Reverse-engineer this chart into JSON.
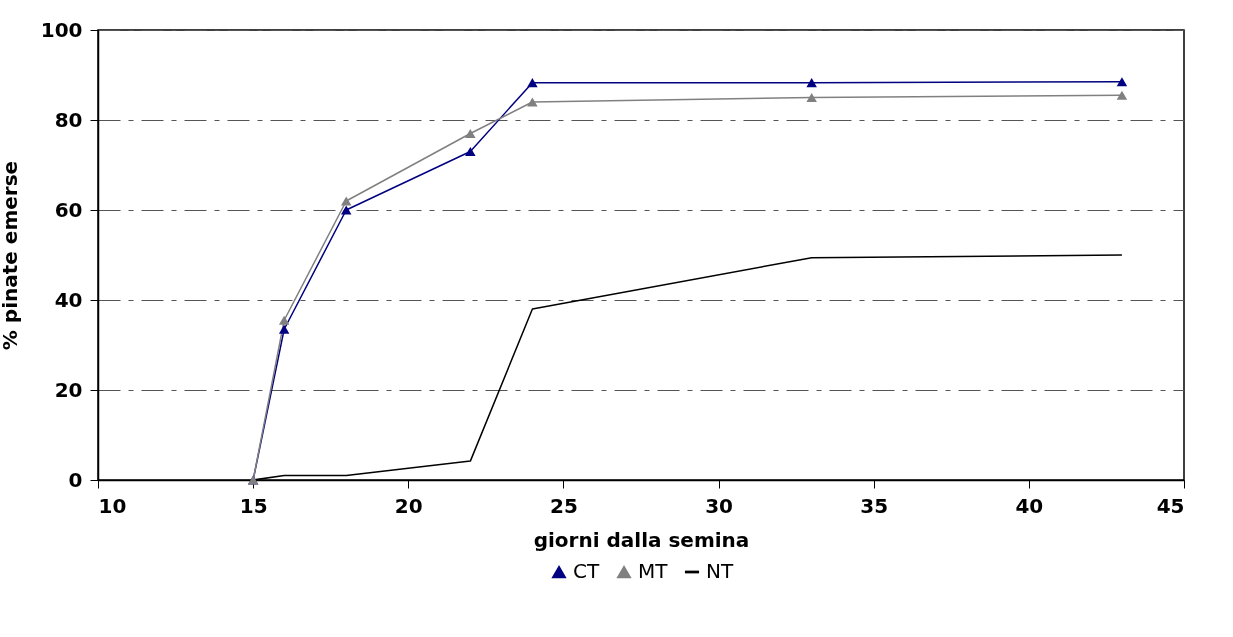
{
  "chart_data": {
    "type": "line",
    "xlabel": "giorni dalla semina",
    "ylabel": "% pinate emerse",
    "x": [
      15,
      16,
      18,
      22,
      24,
      33,
      43
    ],
    "series": [
      {
        "name": "CT",
        "color": "#000080",
        "marker": "triangle",
        "values": [
          0,
          33.5,
          60,
          73,
          88.3,
          88.3,
          88.5
        ]
      },
      {
        "name": "MT",
        "color": "#808080",
        "marker": "triangle",
        "values": [
          0,
          35.5,
          62,
          77,
          84,
          85,
          85.5
        ]
      },
      {
        "name": "NT",
        "color": "#000000",
        "marker": "none",
        "values": [
          0,
          1,
          1,
          4.2,
          38,
          49.4,
          50
        ]
      }
    ],
    "xlim": [
      10,
      45
    ],
    "xticks": [
      10,
      15,
      20,
      25,
      30,
      35,
      40,
      45
    ],
    "ylim": [
      0,
      100
    ],
    "yticks": [
      0,
      20,
      40,
      60,
      80,
      100
    ],
    "grid": "y",
    "legend": "bottom",
    "line_style": "solid"
  }
}
